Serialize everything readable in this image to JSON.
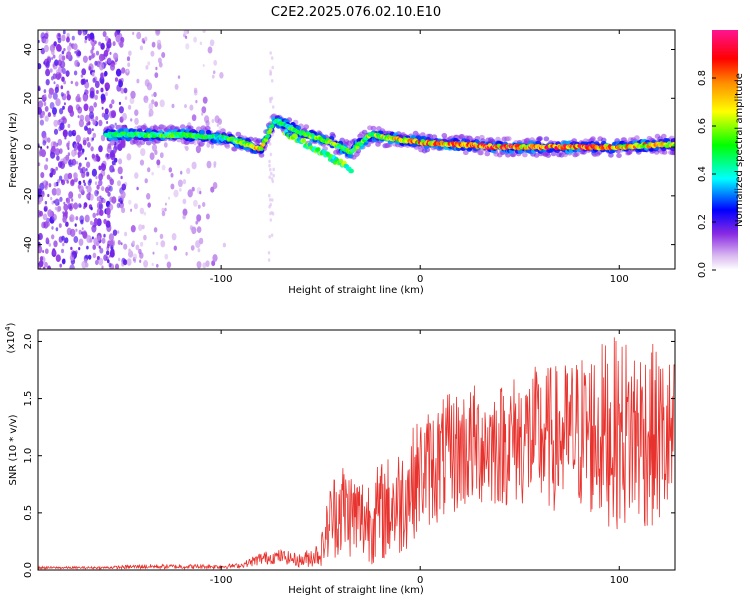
{
  "chart_data": [
    {
      "type": "heatmap",
      "title": "C2E2.2025.076.02.10.E10",
      "xlabel": "Height of straight line (km)",
      "ylabel": "Frequency (Hz)",
      "xlim": [
        -192,
        128
      ],
      "ylim": [
        -50,
        48
      ],
      "xticks": [
        -100,
        0,
        100
      ],
      "yticks": [
        -40,
        -20,
        0,
        20,
        40
      ],
      "colorbar": {
        "label": "Normalized spectral amplitude",
        "range": [
          0,
          1
        ],
        "ticks": [
          "0.0",
          "0.2",
          "0.4",
          "0.6",
          "0.8"
        ],
        "colors": [
          "#ffffff",
          "#d9b8f0",
          "#8a2be2",
          "#0000ff",
          "#00ffff",
          "#00ff00",
          "#ffff00",
          "#ff8c00",
          "#ff0000",
          "#ff1493"
        ]
      },
      "ridge": {
        "description_points_x_km": [
          -158,
          -140,
          -120,
          -100,
          -90,
          -80,
          -73,
          -60,
          -45,
          -35,
          -25,
          -10,
          0,
          20,
          40,
          60,
          80,
          100,
          120,
          128
        ],
        "frequency_hz": [
          5,
          5,
          5,
          4,
          2,
          -1,
          11,
          6,
          2,
          -2,
          5,
          3,
          2,
          1,
          0,
          0,
          0,
          0,
          1,
          1
        ],
        "amplitude": [
          0.5,
          0.6,
          0.6,
          0.5,
          0.7,
          0.8,
          0.5,
          0.6,
          0.7,
          0.6,
          0.7,
          0.8,
          0.9,
          0.9,
          0.95,
          0.95,
          0.95,
          0.9,
          0.8,
          0.7
        ]
      },
      "noise_region_x_km": [
        -192,
        -98
      ]
    },
    {
      "type": "line",
      "title": "",
      "xlabel": "Height of straight line (km)",
      "ylabel": "SNR (10 * v/v)",
      "y_multiplier_label": "(x10",
      "y_multiplier_exp": "4",
      "y_multiplier_close": ")",
      "xlim": [
        -192,
        128
      ],
      "ylim": [
        0,
        2.1
      ],
      "xticks": [
        -100,
        0,
        100
      ],
      "yticks": [
        "0.0",
        "0.5",
        "1.0",
        "1.5",
        "2.0"
      ],
      "series": [
        {
          "name": "SNR",
          "color": "#e8322d",
          "envelope_x": [
            -192,
            -160,
            -140,
            -120,
            -100,
            -90,
            -80,
            -70,
            -60,
            -50,
            -45,
            -40,
            -35,
            -30,
            -25,
            -20,
            -10,
            0,
            10,
            20,
            30,
            40,
            50,
            60,
            70,
            80,
            90,
            100,
            110,
            120,
            128
          ],
          "envelope_mid": [
            0.02,
            0.02,
            0.03,
            0.03,
            0.03,
            0.04,
            0.1,
            0.12,
            0.08,
            0.15,
            0.45,
            0.55,
            0.5,
            0.45,
            0.45,
            0.5,
            0.6,
            0.85,
            0.95,
            1.05,
            1.1,
            1.1,
            1.15,
            1.15,
            1.15,
            1.2,
            1.2,
            1.2,
            1.2,
            1.15,
            1.1
          ],
          "envelope_amp": [
            0.01,
            0.01,
            0.02,
            0.02,
            0.02,
            0.02,
            0.06,
            0.06,
            0.06,
            0.12,
            0.35,
            0.45,
            0.4,
            0.4,
            0.4,
            0.45,
            0.5,
            0.5,
            0.55,
            0.55,
            0.55,
            0.55,
            0.6,
            0.65,
            0.65,
            0.7,
            0.8,
            0.85,
            0.85,
            0.8,
            0.75
          ]
        }
      ]
    }
  ]
}
